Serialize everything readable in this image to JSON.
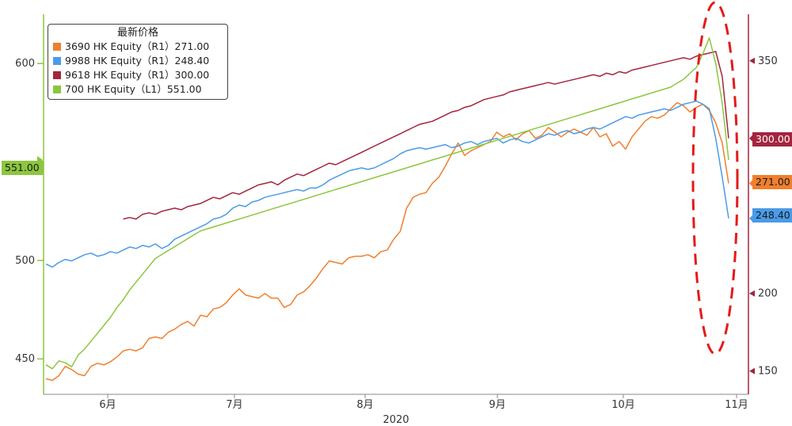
{
  "chart_data": {
    "type": "line",
    "legend_title": "最新价格",
    "xlabel": "2020",
    "x_ticks": [
      "6月",
      "7月",
      "8月",
      "9月",
      "10月",
      "11月"
    ],
    "y_left": {
      "ticks": [
        450,
        500,
        600
      ],
      "range": [
        432,
        625
      ]
    },
    "y_right": {
      "ticks": [
        150,
        200,
        350
      ],
      "range": [
        135,
        380
      ]
    },
    "legend_placement": "top-left",
    "x_points": 107,
    "series": [
      {
        "name": "3690 HK Equity",
        "legend_label": "3690 HK Equity（R1）271.00",
        "axis": "right",
        "color": "#f07f2e",
        "last_value": "271.00",
        "values": [
          145,
          144,
          147,
          153,
          151,
          148,
          147,
          153,
          155,
          154,
          156,
          159,
          163,
          164,
          163,
          165,
          171,
          172,
          171,
          175,
          177,
          180,
          182,
          179,
          186,
          185,
          190,
          191,
          194,
          199,
          203,
          199,
          198,
          197,
          200,
          197,
          197,
          191,
          193,
          199,
          201,
          205,
          210,
          216,
          221,
          220,
          219,
          223,
          224,
          224,
          225,
          223,
          227,
          228,
          235,
          240,
          255,
          262,
          264,
          265,
          271,
          275,
          282,
          290,
          297,
          289,
          292,
          294,
          296,
          298,
          304,
          301,
          303,
          299,
          303,
          305,
          300,
          302,
          307,
          304,
          301,
          304,
          306,
          304,
          302,
          307,
          301,
          303,
          295,
          298,
          293,
          301,
          306,
          311,
          314,
          313,
          315,
          319,
          323,
          321,
          317,
          320,
          322,
          318,
          310,
          297,
          271
        ]
      },
      {
        "name": "9988 HK Equity",
        "legend_label": "9988 HK Equity（R1）248.40",
        "axis": "right",
        "color": "#4a9be8",
        "last_value": "248.40",
        "values": [
          219,
          217,
          220,
          222,
          221,
          223,
          225,
          226,
          224,
          225,
          227,
          226,
          228,
          230,
          229,
          231,
          230,
          232,
          229,
          231,
          235,
          237,
          239,
          241,
          243,
          245,
          248,
          249,
          251,
          255,
          257,
          256,
          259,
          260,
          262,
          263,
          264,
          265,
          266,
          267,
          266,
          268,
          268,
          270,
          273,
          275,
          277,
          279,
          280,
          281,
          280,
          281,
          283,
          285,
          287,
          290,
          292,
          293,
          294,
          293,
          294,
          295,
          296,
          294,
          295,
          297,
          298,
          296,
          298,
          299,
          300,
          297,
          299,
          300,
          298,
          297,
          299,
          301,
          303,
          302,
          304,
          305,
          303,
          304,
          306,
          307,
          306,
          308,
          310,
          312,
          314,
          313,
          315,
          316,
          317,
          318,
          319,
          318,
          320,
          322,
          323,
          324,
          322,
          319,
          300,
          275,
          248.4
        ]
      },
      {
        "name": "9618 HK Equity",
        "legend_label": "9618 HK Equity（R1）300.00",
        "axis": "right",
        "color": "#a3253e",
        "last_value": "300.00",
        "values": [
          null,
          null,
          null,
          null,
          null,
          null,
          null,
          null,
          null,
          null,
          null,
          null,
          248,
          249,
          248,
          251,
          252,
          251,
          253,
          254,
          255,
          254,
          256,
          257,
          258,
          260,
          262,
          261,
          263,
          265,
          264,
          266,
          268,
          270,
          271,
          272,
          270,
          273,
          275,
          277,
          276,
          278,
          280,
          282,
          284,
          283,
          285,
          287,
          289,
          291,
          293,
          295,
          297,
          299,
          301,
          303,
          305,
          307,
          309,
          310,
          311,
          313,
          315,
          317,
          318,
          320,
          321,
          323,
          325,
          326,
          327,
          328,
          330,
          331,
          332,
          333,
          334,
          335,
          336,
          335,
          336,
          337,
          338,
          339,
          340,
          341,
          340,
          342,
          341,
          343,
          342,
          344,
          345,
          346,
          347,
          348,
          349,
          350,
          351,
          352,
          351,
          353,
          354,
          355,
          356,
          340,
          300
        ]
      },
      {
        "name": "700 HK Equity",
        "legend_label": "700 HK Equity（L1）551.00",
        "axis": "left",
        "color": "#8cc63f",
        "last_value": "551.00",
        "values": [
          447,
          445,
          449,
          448,
          446,
          452,
          455,
          459,
          463,
          467,
          471,
          476,
          480,
          485,
          489,
          493,
          497,
          501,
          503,
          505,
          507,
          509,
          511,
          513,
          515,
          516,
          517,
          518,
          519,
          520,
          521,
          522,
          523,
          524,
          525,
          526,
          527,
          528,
          529,
          530,
          531,
          532,
          533,
          534,
          535,
          536,
          537,
          538,
          539,
          540,
          541,
          542,
          543,
          544,
          545,
          546,
          547,
          548,
          549,
          550,
          551,
          552,
          553,
          554,
          555,
          556,
          557,
          558,
          559,
          560,
          561,
          562,
          563,
          564,
          565,
          566,
          567,
          568,
          569,
          570,
          571,
          572,
          573,
          574,
          575,
          576,
          577,
          578,
          579,
          580,
          581,
          582,
          583,
          584,
          585,
          586,
          587,
          588,
          590,
          592,
          595,
          598,
          605,
          613,
          600,
          580,
          551
        ]
      }
    ]
  },
  "value_tags": {
    "left": "551.00",
    "r1": "300.00",
    "r2": "271.00",
    "r3": "248.40"
  }
}
